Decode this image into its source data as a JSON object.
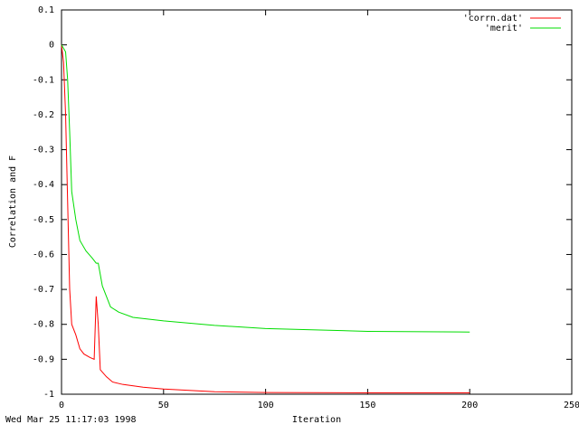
{
  "chart_data": {
    "type": "line",
    "xlabel": "Iteration",
    "ylabel": "Correlation and F",
    "timestamp": "Wed Mar 25 11:17:03 1998",
    "xlim": [
      0,
      250
    ],
    "xticks": [
      0,
      50,
      100,
      150,
      200,
      250
    ],
    "ylim": [
      -1,
      0.1
    ],
    "yticks": [
      0.1,
      0,
      -0.1,
      -0.2,
      -0.3,
      -0.4,
      -0.5,
      -0.6,
      -0.7,
      -0.8,
      -0.9,
      -1
    ],
    "legend": "top-right",
    "series": [
      {
        "name": "'corrn.dat'",
        "color": "#ff0000",
        "x": [
          0,
          1,
          2,
          3,
          4,
          5,
          7,
          9,
          11,
          14,
          16,
          17,
          18,
          19,
          22,
          25,
          30,
          40,
          50,
          75,
          100,
          150,
          200
        ],
        "values": [
          0,
          -0.05,
          -0.2,
          -0.45,
          -0.7,
          -0.8,
          -0.83,
          -0.87,
          -0.885,
          -0.895,
          -0.9,
          -0.72,
          -0.8,
          -0.93,
          -0.95,
          -0.965,
          -0.972,
          -0.98,
          -0.985,
          -0.993,
          -0.995,
          -0.996,
          -0.996
        ]
      },
      {
        "name": "'merit'",
        "color": "#00dd00",
        "x": [
          0,
          2,
          3,
          4,
          5,
          7,
          9,
          12,
          15,
          17,
          18,
          20,
          22,
          24,
          28,
          35,
          50,
          75,
          100,
          150,
          200
        ],
        "values": [
          0,
          -0.02,
          -0.1,
          -0.25,
          -0.42,
          -0.5,
          -0.56,
          -0.59,
          -0.61,
          -0.625,
          -0.625,
          -0.69,
          -0.72,
          -0.75,
          -0.765,
          -0.78,
          -0.79,
          -0.803,
          -0.812,
          -0.82,
          -0.822
        ]
      }
    ]
  }
}
